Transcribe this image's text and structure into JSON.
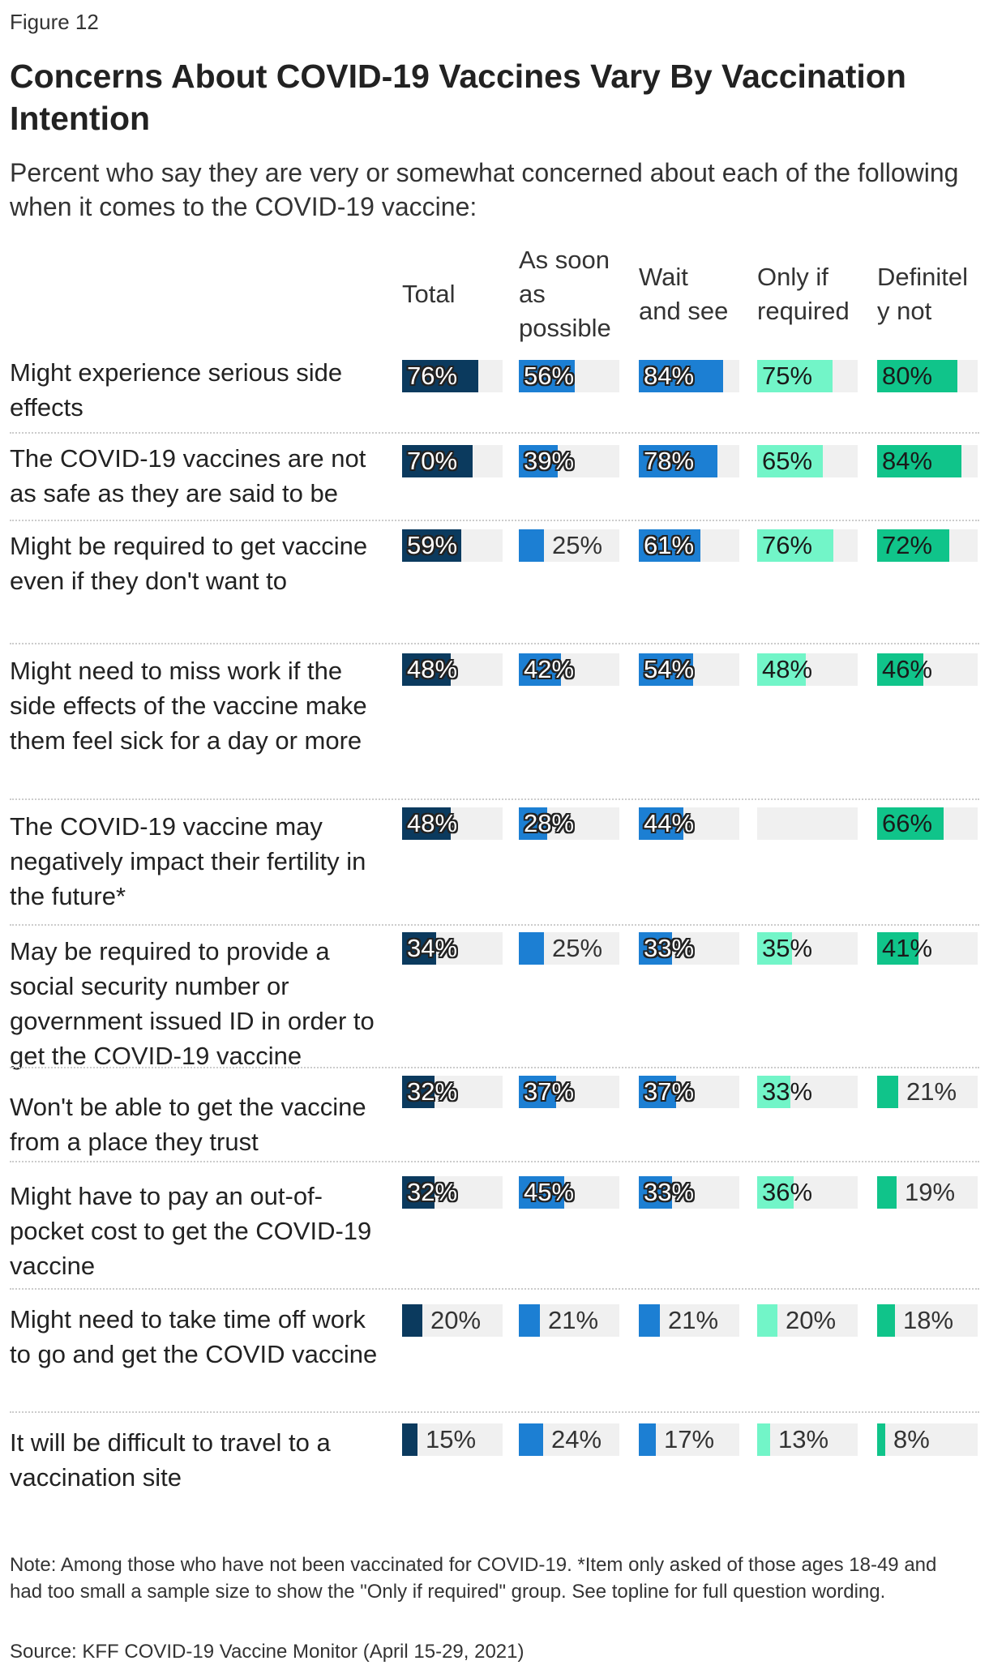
{
  "figure_label": "Figure 12",
  "colors": {
    "Total": "#0b3a5e",
    "As soon as possible": "#1c7fd3",
    "Wait and see": "#1c7fd3",
    "Only if required": "#72f5c8",
    "Definitely not": "#10c48a",
    "track": "#f0f0f0"
  },
  "chart_data": {
    "type": "bar",
    "title": "Concerns About COVID-19 Vaccines Vary By Vaccination Intention",
    "subtitle": "Percent who say they are very or somewhat concerned about each of the following when it comes to the COVID-19 vaccine:",
    "columns": [
      {
        "name": "Total",
        "header": [
          "Total"
        ]
      },
      {
        "name": "As soon as possible",
        "header": [
          "As soon",
          "as",
          "possible"
        ]
      },
      {
        "name": "Wait and see",
        "header": [
          "Wait",
          "and see"
        ]
      },
      {
        "name": "Only if required",
        "header": [
          "Only if",
          "required"
        ]
      },
      {
        "name": "Definitely not",
        "header": [
          "Definitel",
          "y not"
        ]
      }
    ],
    "ylim": [
      0,
      100
    ],
    "rows": [
      {
        "label": "Might experience serious side effects",
        "values": [
          76,
          56,
          84,
          75,
          80
        ]
      },
      {
        "label": "The COVID-19 vaccines are not as safe as they are said to be",
        "values": [
          70,
          39,
          78,
          65,
          84
        ]
      },
      {
        "label": "Might be required to get vaccine even if they don't want to",
        "values": [
          59,
          25,
          61,
          76,
          72
        ]
      },
      {
        "label": "Might need to miss work if the side effects of the vaccine make them feel sick for a day or more",
        "values": [
          48,
          42,
          54,
          48,
          46
        ]
      },
      {
        "label": "The COVID-19 vaccine may negatively impact their fertility in the future*",
        "values": [
          48,
          28,
          44,
          null,
          66
        ]
      },
      {
        "label": "May be required to provide a social security number or government issued ID in order to get the COVID-19 vaccine",
        "values": [
          34,
          25,
          33,
          35,
          41
        ]
      },
      {
        "label": "Won't be able to get the vaccine from a place they trust",
        "values": [
          32,
          37,
          37,
          33,
          21
        ]
      },
      {
        "label": "Might have to pay an out-of-pocket cost to get the COVID-19 vaccine",
        "values": [
          32,
          45,
          33,
          36,
          19
        ]
      },
      {
        "label": "Might need to take time off work to go and get the COVID vaccine",
        "values": [
          20,
          21,
          21,
          20,
          18
        ]
      },
      {
        "label": "It will be difficult to travel to a vaccination site",
        "values": [
          15,
          24,
          17,
          13,
          8
        ]
      }
    ],
    "value_suffix": "%"
  },
  "footer": {
    "note": "Note: Among those who have not been vaccinated for COVID-19. *Item only asked of those ages 18-49 and had too small a sample size to show the \"Only if required\" group. See topline for full question wording.",
    "source": "Source: KFF COVID-19 Vaccine Monitor (April 15-29, 2021)"
  }
}
